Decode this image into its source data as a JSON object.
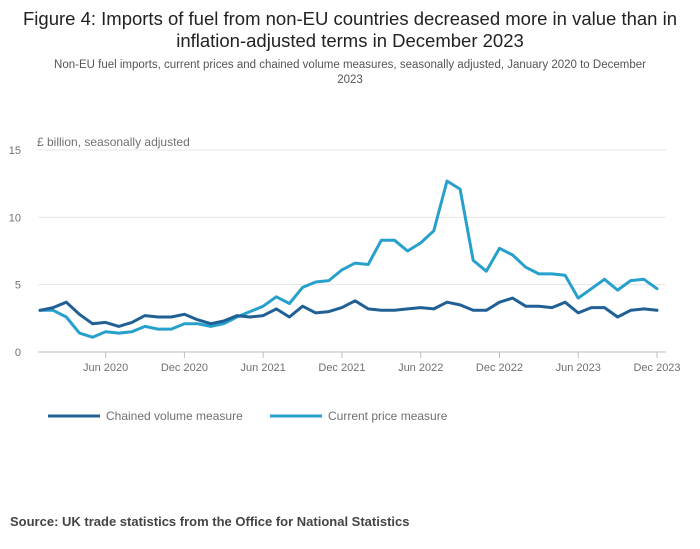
{
  "header": {
    "title": "Figure 4: Imports of fuel from non-EU countries decreased more in value than in inflation-adjusted terms in December 2023",
    "subtitle": "Non-EU fuel imports, current prices and chained volume measures, seasonally adjusted, January 2020 to December 2023"
  },
  "footer": {
    "source": "Source: UK trade statistics from the Office for National Statistics"
  },
  "colors": {
    "chained": "#206095",
    "current": "#27a0cc",
    "grid": "#e6e6e6",
    "axis": "#bebebe",
    "text": "#707070"
  },
  "chart_data": {
    "type": "line",
    "title": "Figure 4: Imports of fuel from non-EU countries decreased more in value than in inflation-adjusted terms in December 2023",
    "subtitle": "Non-EU fuel imports, current prices and chained volume measures, seasonally adjusted, January 2020 to December 2023",
    "ylabel": "£ billion, seasonally adjusted",
    "xlabel": "",
    "ylim": [
      0,
      15
    ],
    "yticks": [
      0,
      5,
      10,
      15
    ],
    "x_start": "Jan 2020",
    "x_end": "Dec 2023",
    "xticks": [
      {
        "index": 5,
        "label": "Jun 2020"
      },
      {
        "index": 11,
        "label": "Dec 2020"
      },
      {
        "index": 17,
        "label": "Jun 2021"
      },
      {
        "index": 23,
        "label": "Dec 2021"
      },
      {
        "index": 29,
        "label": "Jun 2022"
      },
      {
        "index": 35,
        "label": "Dec 2022"
      },
      {
        "index": 41,
        "label": "Jun 2023"
      },
      {
        "index": 47,
        "label": "Dec 2023"
      }
    ],
    "legend": "bottom-left",
    "series": [
      {
        "name": "Chained volume measure",
        "color": "#206095",
        "values": [
          3.1,
          3.3,
          3.7,
          2.8,
          2.1,
          2.2,
          1.9,
          2.2,
          2.7,
          2.6,
          2.6,
          2.8,
          2.4,
          2.1,
          2.3,
          2.7,
          2.6,
          2.7,
          3.2,
          2.6,
          3.4,
          2.9,
          3.0,
          3.3,
          3.8,
          3.2,
          3.1,
          3.1,
          3.2,
          3.3,
          3.2,
          3.7,
          3.5,
          3.1,
          3.1,
          3.7,
          4.0,
          3.4,
          3.4,
          3.3,
          3.7,
          2.9,
          3.3,
          3.3,
          2.6,
          3.1,
          3.2,
          3.1
        ]
      },
      {
        "name": "Current price measure",
        "color": "#27a0cc",
        "values": [
          3.1,
          3.1,
          2.6,
          1.4,
          1.1,
          1.5,
          1.4,
          1.5,
          1.9,
          1.7,
          1.7,
          2.1,
          2.1,
          1.9,
          2.1,
          2.6,
          3.0,
          3.4,
          4.1,
          3.6,
          4.8,
          5.2,
          5.3,
          6.1,
          6.6,
          6.5,
          8.3,
          8.3,
          7.5,
          8.1,
          9.0,
          12.7,
          12.1,
          6.8,
          6.0,
          7.7,
          7.2,
          6.3,
          5.8,
          5.8,
          5.7,
          4.0,
          4.7,
          5.4,
          4.6,
          5.3,
          5.4,
          4.7
        ]
      }
    ]
  }
}
